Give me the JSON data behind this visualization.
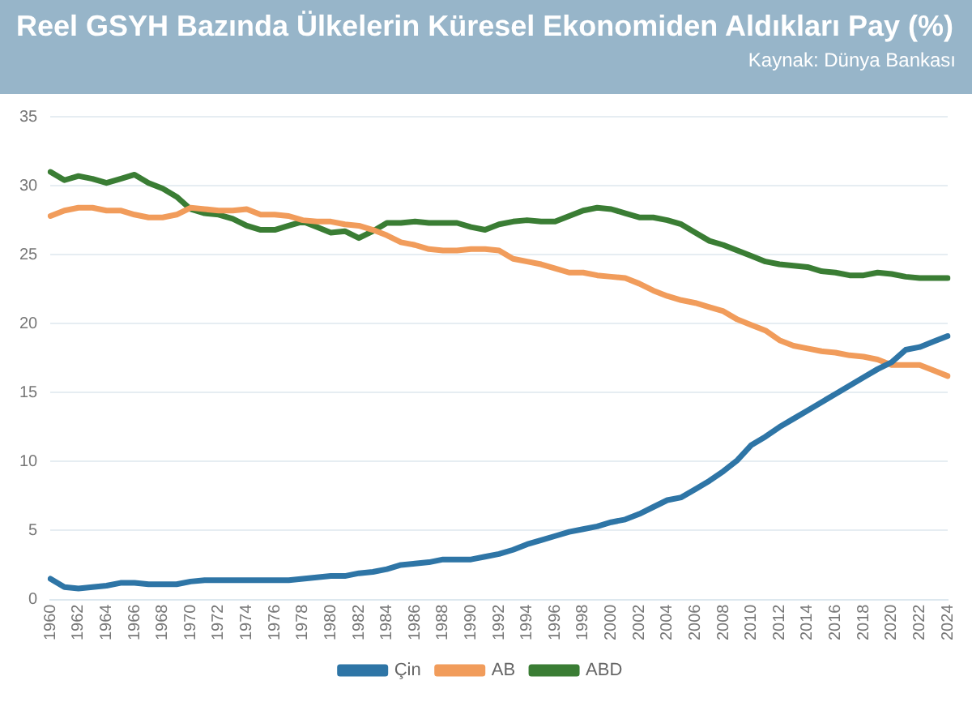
{
  "chart_data": {
    "type": "line",
    "title": "Reel GSYH Bazında Ülkelerin Küresel Ekonomiden Aldıkları Pay (%)",
    "subtitle": "Kaynak: Dünya Bankası",
    "categories": [
      "1960",
      null,
      "1962",
      null,
      "1964",
      null,
      "1966",
      null,
      "1968",
      null,
      "1970",
      null,
      "1972",
      null,
      "1974",
      null,
      "1976",
      null,
      "1978",
      null,
      "1980",
      null,
      "1982",
      null,
      "1984",
      null,
      "1986",
      null,
      "1988",
      null,
      "1990",
      null,
      "1992",
      null,
      "1994",
      null,
      "1996",
      null,
      "1998",
      null,
      "2000",
      null,
      "2002",
      null,
      "2004",
      null,
      "2006",
      null,
      "2008",
      null,
      "2010",
      null,
      "2012",
      null,
      "2014",
      null,
      "2016",
      null,
      "2018",
      null,
      "2020",
      null,
      "2022",
      null,
      "2024"
    ],
    "series": [
      {
        "name": "Çin",
        "color": "#2e75a6",
        "values": [
          1.5,
          0.9,
          0.8,
          0.9,
          1.0,
          1.2,
          1.2,
          1.1,
          1.1,
          1.1,
          1.3,
          1.4,
          1.4,
          1.4,
          1.4,
          1.4,
          1.4,
          1.4,
          1.5,
          1.6,
          1.7,
          1.7,
          1.9,
          2.0,
          2.2,
          2.5,
          2.6,
          2.7,
          2.9,
          2.9,
          2.9,
          3.1,
          3.3,
          3.6,
          4.0,
          4.3,
          4.6,
          4.9,
          5.1,
          5.3,
          5.6,
          5.8,
          6.2,
          6.7,
          7.2,
          7.4,
          8.0,
          8.6,
          9.3,
          10.1,
          11.2,
          11.8,
          12.5,
          13.1,
          13.7,
          14.3,
          14.9,
          15.5,
          16.1,
          16.7,
          17.2,
          18.1,
          18.3,
          18.7,
          19.1
        ]
      },
      {
        "name": "AB",
        "color": "#f19c5b",
        "values": [
          27.8,
          28.2,
          28.4,
          28.4,
          28.2,
          28.2,
          27.9,
          27.7,
          27.7,
          27.9,
          28.4,
          28.3,
          28.2,
          28.2,
          28.3,
          27.9,
          27.9,
          27.8,
          27.5,
          27.4,
          27.4,
          27.2,
          27.1,
          26.8,
          26.4,
          25.9,
          25.7,
          25.4,
          25.3,
          25.3,
          25.4,
          25.4,
          25.3,
          24.7,
          24.5,
          24.3,
          24.0,
          23.7,
          23.7,
          23.5,
          23.4,
          23.3,
          22.9,
          22.4,
          22.0,
          21.7,
          21.5,
          21.2,
          20.9,
          20.3,
          19.9,
          19.5,
          18.8,
          18.4,
          18.2,
          18.0,
          17.9,
          17.7,
          17.6,
          17.4,
          17.0,
          17.0,
          17.0,
          16.6,
          16.2
        ]
      },
      {
        "name": "ABD",
        "color": "#3a7d34",
        "values": [
          31.0,
          30.4,
          30.7,
          30.5,
          30.2,
          30.5,
          30.8,
          30.2,
          29.8,
          29.2,
          28.3,
          28.0,
          27.9,
          27.6,
          27.1,
          26.8,
          26.8,
          27.1,
          27.4,
          27.0,
          26.6,
          26.7,
          26.2,
          26.7,
          27.3,
          27.3,
          27.4,
          27.3,
          27.3,
          27.3,
          27.0,
          26.8,
          27.2,
          27.4,
          27.5,
          27.4,
          27.4,
          27.8,
          28.2,
          28.4,
          28.3,
          28.0,
          27.7,
          27.7,
          27.5,
          27.2,
          26.6,
          26.0,
          25.7,
          25.3,
          24.9,
          24.5,
          24.3,
          24.2,
          24.1,
          23.8,
          23.7,
          23.5,
          23.5,
          23.7,
          23.6,
          23.4,
          23.3,
          23.3,
          23.3
        ]
      }
    ],
    "ylim": [
      0,
      35
    ],
    "yticks": [
      0,
      5,
      10,
      15,
      20,
      25,
      30,
      35
    ],
    "grid": "y",
    "legend": "bottom",
    "marker": "none",
    "line_style": "solid"
  }
}
